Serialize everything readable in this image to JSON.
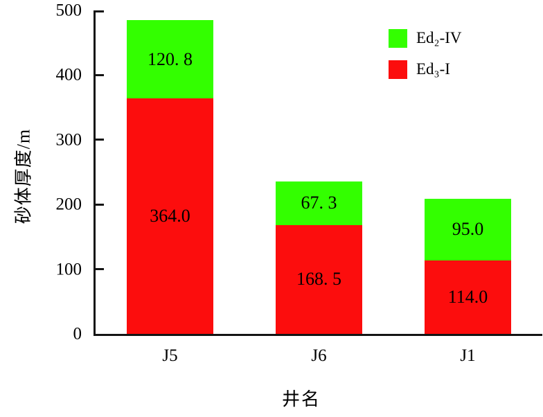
{
  "chart_data": {
    "type": "bar",
    "stacked": true,
    "title": "",
    "xlabel": "井名",
    "ylabel": "砂体厚度/m",
    "ylim": [
      0,
      500
    ],
    "yticks": [
      0,
      100,
      200,
      300,
      400,
      500
    ],
    "grid": false,
    "categories": [
      "J5",
      "J6",
      "J1"
    ],
    "series": [
      {
        "name": "Ed₃-I",
        "color": "#fc0d0d",
        "stack_position": "bottom",
        "values": [
          364.0,
          168.5,
          114.0
        ],
        "value_labels": [
          "364.0",
          "168. 5",
          "114.0"
        ]
      },
      {
        "name": "Ed₂-IV",
        "color": "#33ff00",
        "stack_position": "top",
        "values": [
          120.8,
          67.3,
          95.0
        ],
        "value_labels": [
          "120. 8",
          "67. 3",
          "95.0"
        ]
      }
    ],
    "legend": {
      "position": "top-right",
      "entries": [
        {
          "label": "Ed₂-IV",
          "color": "#33ff00"
        },
        {
          "label": "Ed₃-I",
          "color": "#fc0d0d"
        }
      ]
    },
    "axis_color": "#141414"
  }
}
